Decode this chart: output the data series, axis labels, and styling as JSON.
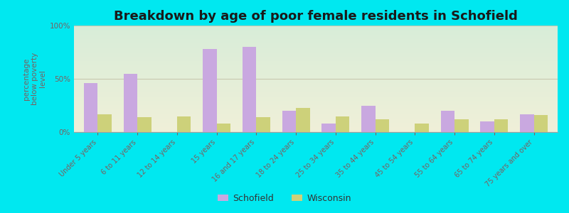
{
  "title": "Breakdown by age of poor female residents in Schofield",
  "ylabel": "percentage\nbelow poverty\nlevel",
  "categories": [
    "Under 5 years",
    "6 to 11 years",
    "12 to 14 years",
    "15 years",
    "16 and 17 years",
    "18 to 24 years",
    "25 to 34 years",
    "35 to 44 years",
    "45 to 54 years",
    "55 to 64 years",
    "65 to 74 years",
    "75 years and over"
  ],
  "schofield": [
    46,
    55,
    0,
    78,
    80,
    20,
    8,
    25,
    0,
    20,
    10,
    17
  ],
  "wisconsin": [
    17,
    14,
    15,
    8,
    14,
    23,
    15,
    12,
    8,
    12,
    12,
    16
  ],
  "schofield_color": "#c9a8e0",
  "wisconsin_color": "#cdd17a",
  "background_color": "#00e8f0",
  "plot_bg_top": "#d8edd8",
  "plot_bg_bottom": "#f0f0d8",
  "ylim": [
    0,
    100
  ],
  "yticks": [
    0,
    50,
    100
  ],
  "ytick_labels": [
    "0%",
    "50%",
    "100%"
  ],
  "title_fontsize": 13,
  "label_fontsize": 7,
  "ylabel_fontsize": 7.5,
  "bar_width": 0.35,
  "legend_schofield": "Schofield",
  "legend_wisconsin": "Wisconsin",
  "tick_color": "#7a6060",
  "title_color": "#1a1a1a",
  "grid_color": "#c8c8b0",
  "spine_color": "#a0a0a0"
}
